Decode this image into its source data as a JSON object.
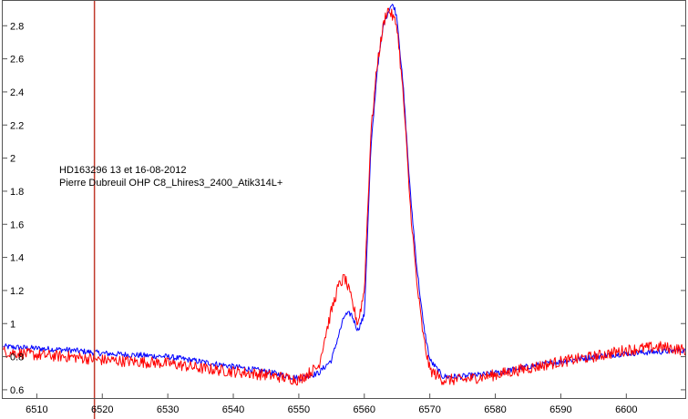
{
  "chart_data": {
    "type": "line",
    "title": "",
    "xlabel": "",
    "ylabel": "",
    "xlim": [
      6504.8,
      6609.0
    ],
    "ylim": [
      0.55,
      2.95
    ],
    "x_ticks": [
      "6510",
      "6520",
      "6530",
      "6540",
      "6550",
      "6560",
      "6570",
      "6580",
      "6590",
      "6600"
    ],
    "x_tick_values": [
      6510,
      6520,
      6530,
      6540,
      6550,
      6560,
      6570,
      6580,
      6590,
      6600
    ],
    "y_ticks": [
      "0.6",
      "0.8",
      "1",
      "1.2",
      "1.4",
      "1.6",
      "1.8",
      "2",
      "2.2",
      "2.4",
      "2.6",
      "2.8"
    ],
    "y_tick_values": [
      0.6,
      0.8,
      1.0,
      1.2,
      1.4,
      1.6,
      1.8,
      2.0,
      2.2,
      2.4,
      2.6,
      2.8
    ],
    "grid": false,
    "annotations": [
      "HD163296  13 et 16-08-2012",
      "Pierre Dubreuil OHP C8_Lhires3_2400_Atik314L+"
    ],
    "marker_line": {
      "x": 6518.8,
      "color": "#c0392b"
    },
    "series": [
      {
        "color": "#0000ff",
        "x": [
          6505,
          6510,
          6515,
          6520,
          6525,
          6530,
          6535,
          6540,
          6545,
          6550,
          6553,
          6555,
          6556,
          6557,
          6558,
          6559,
          6560,
          6561,
          6562,
          6563,
          6564,
          6564.5,
          6565,
          6566,
          6567,
          6568,
          6569,
          6570,
          6572,
          6575,
          6580,
          6585,
          6590,
          6595,
          6600,
          6605,
          6609
        ],
        "y": [
          0.86,
          0.85,
          0.84,
          0.82,
          0.81,
          0.8,
          0.77,
          0.74,
          0.71,
          0.67,
          0.7,
          0.78,
          0.92,
          1.05,
          1.06,
          0.96,
          1.05,
          2.05,
          2.55,
          2.82,
          2.92,
          2.92,
          2.85,
          2.4,
          1.8,
          1.35,
          1.0,
          0.78,
          0.68,
          0.68,
          0.7,
          0.74,
          0.77,
          0.8,
          0.82,
          0.83,
          0.84
        ]
      },
      {
        "color": "#ff0000",
        "x": [
          6505,
          6510,
          6515,
          6520,
          6525,
          6530,
          6535,
          6540,
          6545,
          6550,
          6553,
          6554,
          6555,
          6556,
          6557,
          6558,
          6559,
          6560,
          6561,
          6562,
          6563,
          6563.5,
          6564,
          6565,
          6566,
          6567,
          6568,
          6569,
          6570,
          6572,
          6575,
          6580,
          6585,
          6590,
          6595,
          6600,
          6605,
          6609
        ],
        "y": [
          0.83,
          0.81,
          0.8,
          0.78,
          0.77,
          0.76,
          0.73,
          0.71,
          0.69,
          0.66,
          0.74,
          0.92,
          1.08,
          1.22,
          1.28,
          1.15,
          1.0,
          1.2,
          2.15,
          2.58,
          2.82,
          2.9,
          2.88,
          2.8,
          2.35,
          1.72,
          1.25,
          0.92,
          0.72,
          0.66,
          0.66,
          0.69,
          0.73,
          0.77,
          0.8,
          0.84,
          0.86,
          0.84
        ]
      }
    ]
  }
}
